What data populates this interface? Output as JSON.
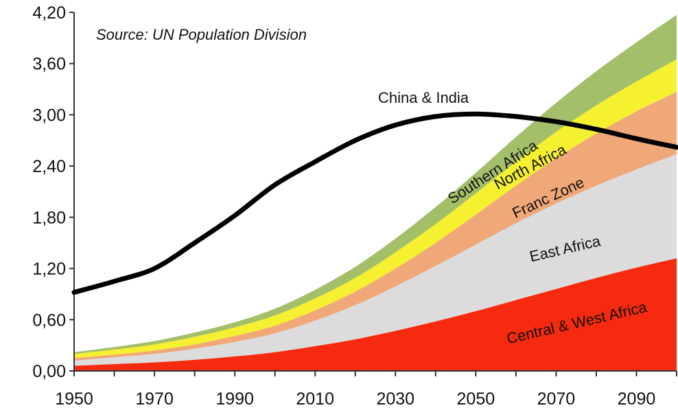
{
  "chart_data": {
    "type": "area",
    "stacked": true,
    "x": [
      1950,
      1960,
      1970,
      1980,
      1990,
      2000,
      2010,
      2020,
      2030,
      2040,
      2050,
      2060,
      2070,
      2080,
      2090,
      2100
    ],
    "ylim": [
      0,
      4.2
    ],
    "xlim": [
      1950,
      2100
    ],
    "yticks": [
      "0,00",
      "0,60",
      "1,20",
      "1,80",
      "2,40",
      "3,00",
      "3,60",
      "4,20"
    ],
    "xticks": [
      "1950",
      "1970",
      "1990",
      "2010",
      "2030",
      "2050",
      "2070",
      "2090"
    ],
    "annotation": "Source: UN Population Division",
    "grid": false,
    "series": [
      {
        "name": "Central & West Africa",
        "color": "#f52a0e",
        "values": [
          0.06,
          0.08,
          0.1,
          0.13,
          0.17,
          0.22,
          0.29,
          0.37,
          0.47,
          0.58,
          0.7,
          0.83,
          0.96,
          1.09,
          1.21,
          1.32
        ]
      },
      {
        "name": "East Africa",
        "color": "#dcdcdc",
        "values": [
          0.06,
          0.08,
          0.1,
          0.13,
          0.17,
          0.22,
          0.3,
          0.4,
          0.52,
          0.65,
          0.78,
          0.9,
          1.0,
          1.08,
          1.15,
          1.22
        ]
      },
      {
        "name": "Franc Zone",
        "color": "#f0a878",
        "values": [
          0.03,
          0.03,
          0.04,
          0.05,
          0.07,
          0.09,
          0.12,
          0.16,
          0.21,
          0.27,
          0.35,
          0.44,
          0.53,
          0.61,
          0.68,
          0.73
        ]
      },
      {
        "name": "North Africa",
        "color": "#f5f030",
        "values": [
          0.05,
          0.06,
          0.07,
          0.09,
          0.1,
          0.12,
          0.14,
          0.16,
          0.19,
          0.22,
          0.25,
          0.28,
          0.31,
          0.33,
          0.35,
          0.38
        ]
      },
      {
        "name": "Southern Africa",
        "color": "#a4bf6a",
        "values": [
          0.02,
          0.03,
          0.04,
          0.05,
          0.06,
          0.08,
          0.1,
          0.13,
          0.16,
          0.2,
          0.24,
          0.29,
          0.34,
          0.4,
          0.46,
          0.52
        ]
      }
    ],
    "line": {
      "name": "China & India",
      "color": "#000000",
      "values": [
        0.92,
        1.05,
        1.2,
        1.5,
        1.82,
        2.18,
        2.45,
        2.7,
        2.88,
        2.98,
        3.01,
        2.98,
        2.92,
        2.83,
        2.72,
        2.62
      ]
    }
  }
}
